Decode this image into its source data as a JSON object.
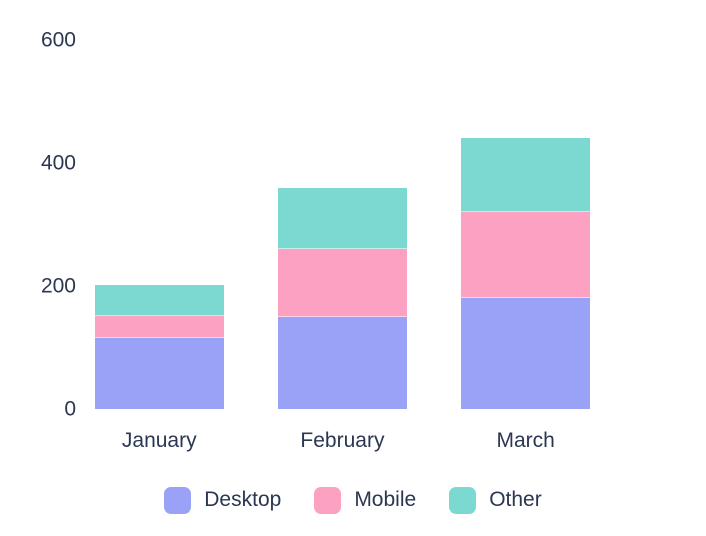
{
  "chart_data": {
    "type": "bar",
    "stacked": true,
    "title": "",
    "categories": [
      "January",
      "February",
      "March"
    ],
    "series": [
      {
        "name": "Desktop",
        "color": "#9aa2f8",
        "values": [
          115,
          150,
          180
        ]
      },
      {
        "name": "Mobile",
        "color": "#fda1c2",
        "values": [
          37,
          110,
          140
        ]
      },
      {
        "name": "Other",
        "color": "#7cd9d1",
        "values": [
          50,
          100,
          120
        ]
      }
    ],
    "y_ticks": [
      0,
      200,
      400,
      600
    ],
    "ylim": [
      0,
      600
    ],
    "grid": false,
    "axis_lines": false,
    "legend_position": "bottom",
    "text_color": "#2b3752",
    "background_color": "#ffffff"
  }
}
